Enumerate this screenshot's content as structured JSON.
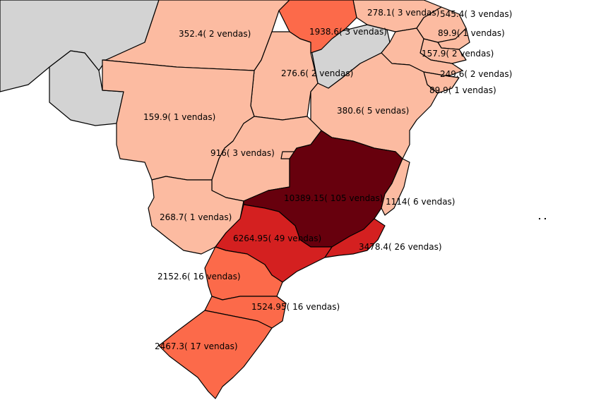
{
  "colors": {
    "neighbor": "#d3d3d3",
    "class_1": "#fcbba1",
    "class_2": "#fc6a4a",
    "class_3": "#d42020",
    "class_4": "#67000d"
  },
  "states": [
    {
      "id": "RR",
      "label": "278.1( 3 vendas)",
      "value": 278.1,
      "sales": 3,
      "color_class": "class_1"
    },
    {
      "id": "AM",
      "label": "352.4( 2 vendas)",
      "value": 352.4,
      "sales": 2,
      "color_class": "class_1"
    },
    {
      "id": "PA",
      "label": "1938.6( 3 vendas)",
      "value": 1938.6,
      "sales": 3,
      "color_class": "class_2"
    },
    {
      "id": "CE",
      "label": "545.4( 3 vendas)",
      "value": 545.4,
      "sales": 3,
      "color_class": "class_1"
    },
    {
      "id": "RN",
      "label": "89.9( 1 vendas)",
      "value": 89.9,
      "sales": 1,
      "color_class": "class_1"
    },
    {
      "id": "PB",
      "label": "157.9( 2 vendas)",
      "value": 157.9,
      "sales": 2,
      "color_class": "class_1"
    },
    {
      "id": "PE",
      "label": "249.6( 2 vendas)",
      "value": 249.6,
      "sales": 2,
      "color_class": "class_1"
    },
    {
      "id": "AL",
      "label": "89.9( 1 vendas)",
      "value": 89.9,
      "sales": 1,
      "color_class": "class_1"
    },
    {
      "id": "TO",
      "label": "276.6( 2 vendas)",
      "value": 276.6,
      "sales": 2,
      "color_class": "class_1"
    },
    {
      "id": "BA",
      "label": "380.6( 5 vendas)",
      "value": 380.6,
      "sales": 5,
      "color_class": "class_1"
    },
    {
      "id": "MT",
      "label": "159.9( 1 vendas)",
      "value": 159.9,
      "sales": 1,
      "color_class": "class_1"
    },
    {
      "id": "GO",
      "label": "916( 3 vendas)",
      "value": 916,
      "sales": 3,
      "color_class": "class_1"
    },
    {
      "id": "MG",
      "label": "10389.15( 105 vendas)",
      "value": 10389.15,
      "sales": 105,
      "color_class": "class_4"
    },
    {
      "id": "ES",
      "label": "1114( 6 vendas)",
      "value": 1114,
      "sales": 6,
      "color_class": "class_1"
    },
    {
      "id": "MS",
      "label": "268.7( 1 vendas)",
      "value": 268.7,
      "sales": 1,
      "color_class": "class_1"
    },
    {
      "id": "SP",
      "label": "6264.95( 49 vendas)",
      "value": 6264.95,
      "sales": 49,
      "color_class": "class_3"
    },
    {
      "id": "RJ",
      "label": "3478.4( 26 vendas)",
      "value": 3478.4,
      "sales": 26,
      "color_class": "class_3"
    },
    {
      "id": "PR",
      "label": "2152.6( 16 vendas)",
      "value": 2152.6,
      "sales": 16,
      "color_class": "class_2"
    },
    {
      "id": "SC",
      "label": "1524.95( 16 vendas)",
      "value": 1524.95,
      "sales": 16,
      "color_class": "class_2"
    },
    {
      "id": "RS",
      "label": "2467.3( 17 vendas)",
      "value": 2467.3,
      "sales": 17,
      "color_class": "class_2"
    }
  ]
}
